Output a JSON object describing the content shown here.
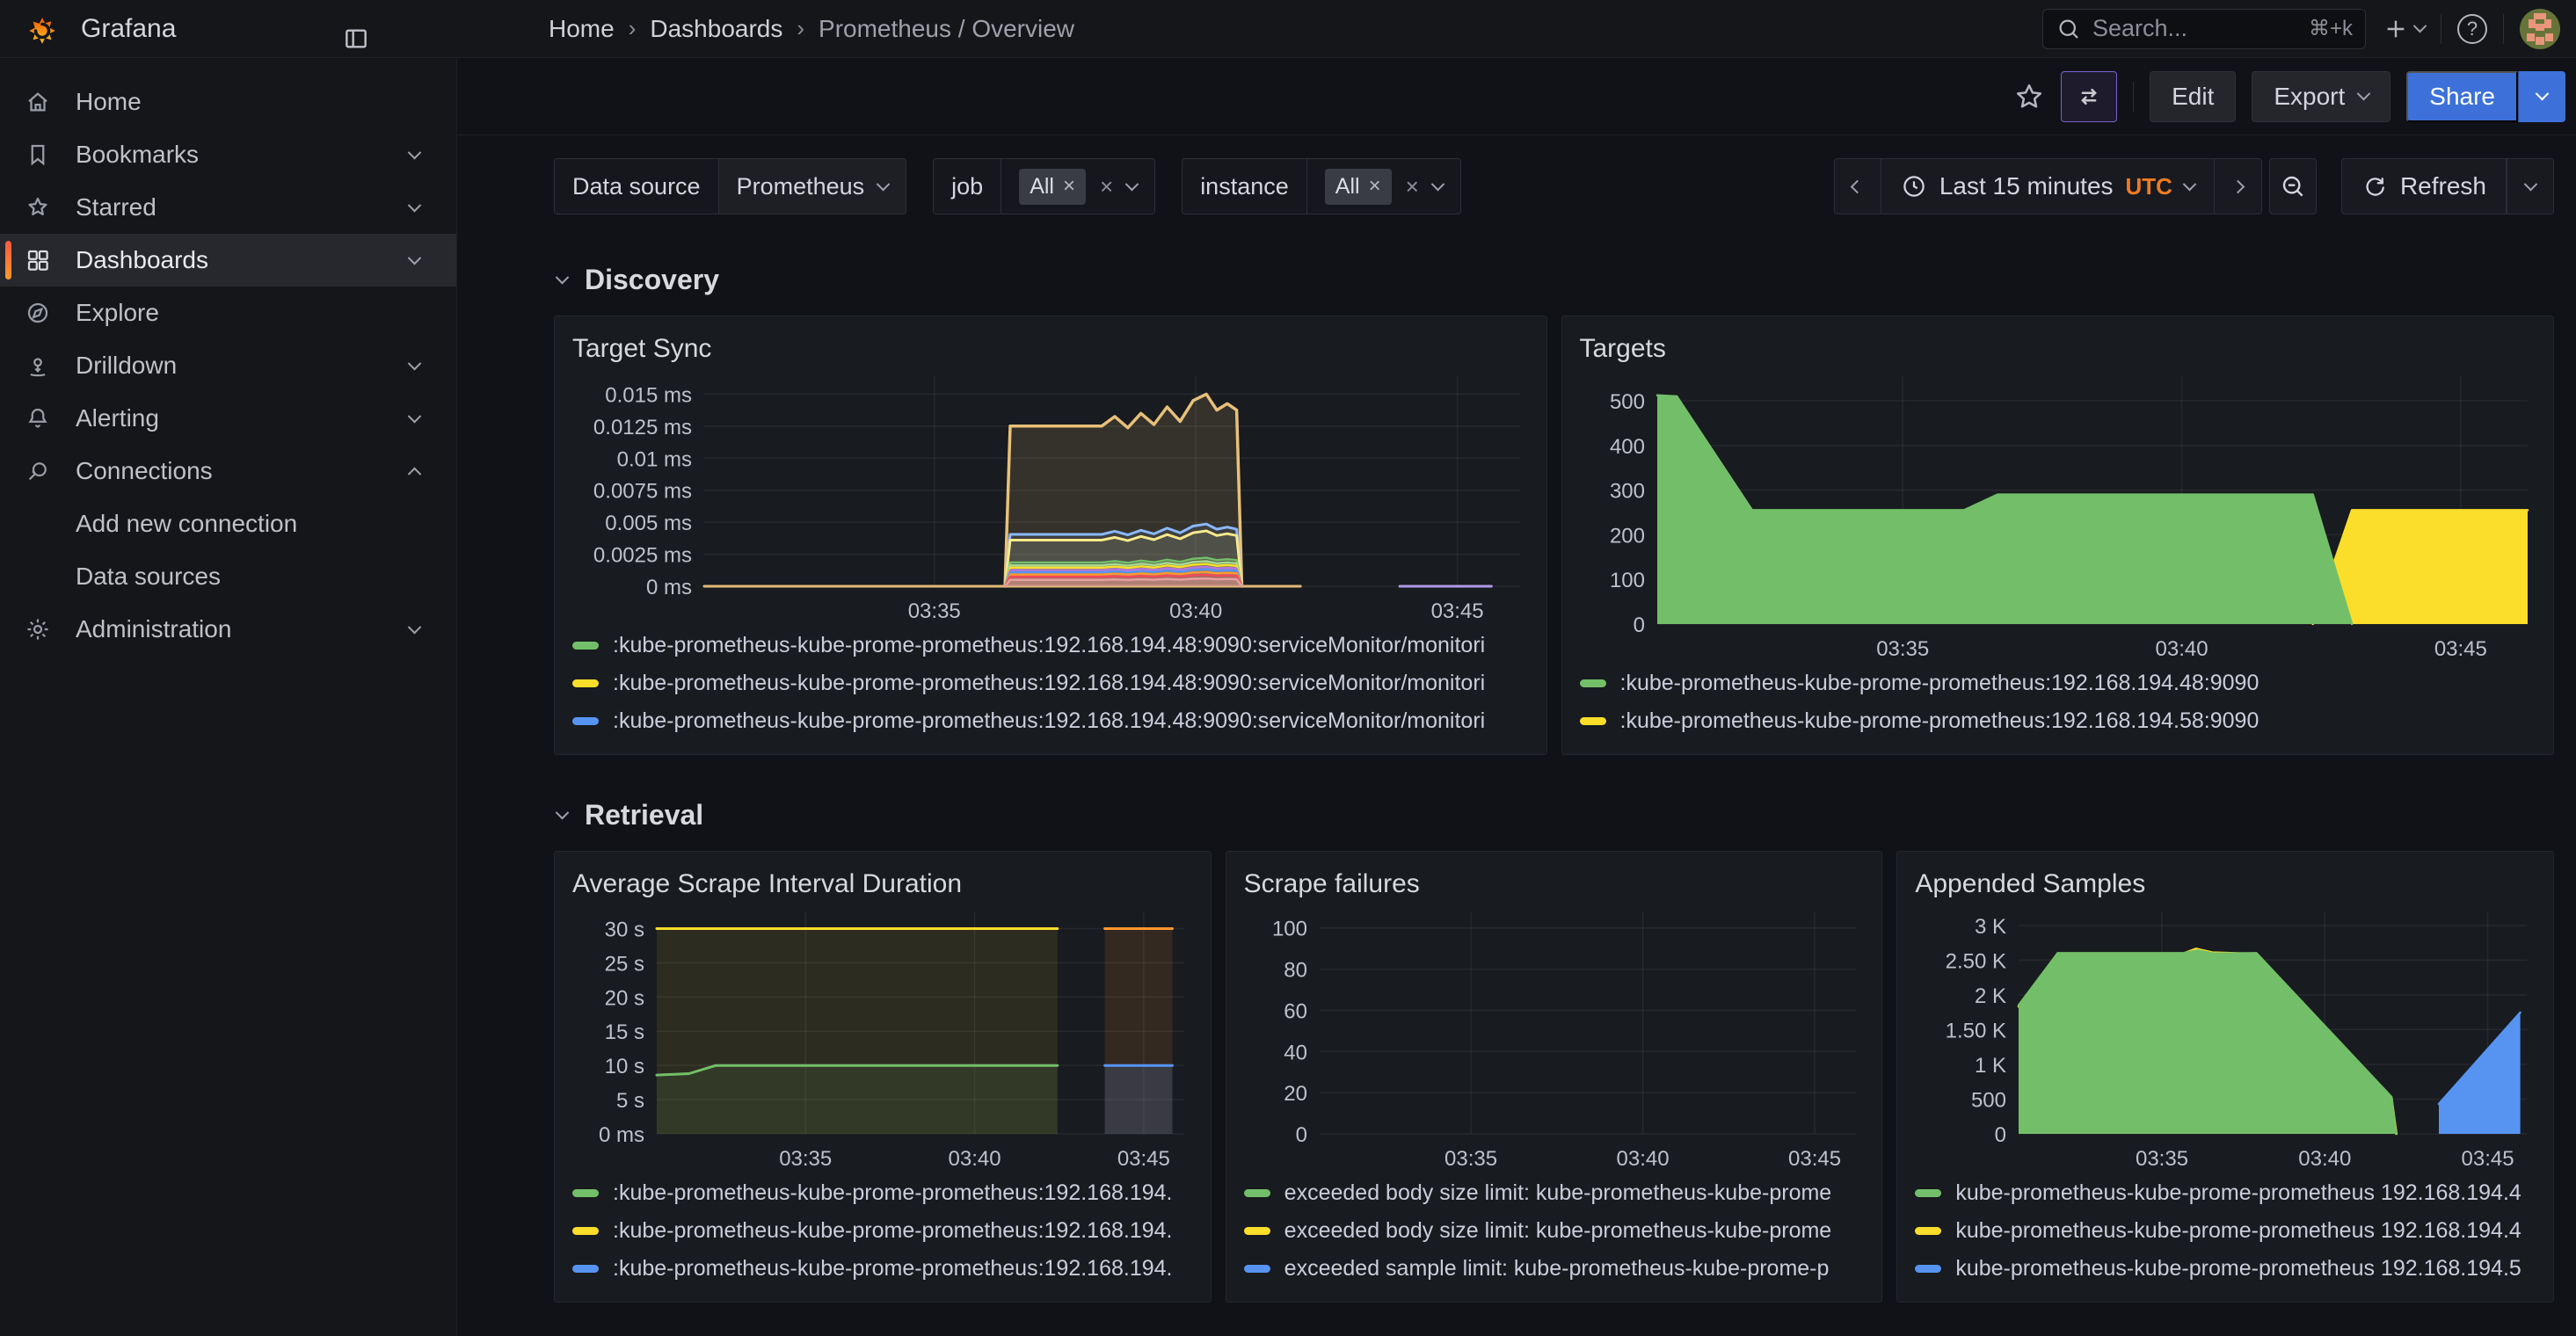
{
  "topbar": {
    "app_title": "Grafana",
    "breadcrumb": [
      "Home",
      "Dashboards",
      "Prometheus / Overview"
    ],
    "search": {
      "placeholder": "Search...",
      "shortcut": "⌘+k"
    },
    "help_glyph": "?"
  },
  "actions": {
    "edit_label": "Edit",
    "export_label": "Export",
    "share_label": "Share"
  },
  "filters": {
    "datasource_label": "Data source",
    "datasource_value": "Prometheus",
    "job_label": "job",
    "job_value": "All",
    "instance_label": "instance",
    "instance_value": "All"
  },
  "time": {
    "range_label": "Last 15 minutes",
    "timezone": "UTC",
    "refresh_label": "Refresh"
  },
  "sections": {
    "discovery": "Discovery",
    "retrieval": "Retrieval"
  },
  "sidebar": {
    "items": [
      {
        "label": "Home"
      },
      {
        "label": "Bookmarks"
      },
      {
        "label": "Starred"
      },
      {
        "label": "Dashboards",
        "active": true
      },
      {
        "label": "Explore"
      },
      {
        "label": "Drilldown"
      },
      {
        "label": "Alerting"
      },
      {
        "label": "Connections",
        "expanded": true
      },
      {
        "label": "Add new connection",
        "sub": true
      },
      {
        "label": "Data sources",
        "sub": true
      },
      {
        "label": "Administration"
      }
    ]
  },
  "colors": {
    "green": "#73bf69",
    "yellow": "#fade2a",
    "blue": "#5794f2",
    "orange": "#ff9830",
    "accent_blue": "#3d71d9",
    "utc_orange": "#ee7b22"
  },
  "chart_data": [
    {
      "type": "area",
      "title": "Target Sync",
      "pad_left": 152,
      "x_domain": [
        0,
        15.6
      ],
      "x_ticks": [
        {
          "t": 4.4,
          "label": "03:35"
        },
        {
          "t": 9.4,
          "label": "03:40"
        },
        {
          "t": 14.4,
          "label": "03:45"
        }
      ],
      "y_domain": [
        0,
        0.0164
      ],
      "y_ticks": [
        {
          "v": 0,
          "label": "0 ms"
        },
        {
          "v": 0.0025,
          "label": "0.0025 ms"
        },
        {
          "v": 0.005,
          "label": "0.005 ms"
        },
        {
          "v": 0.0075,
          "label": "0.0075 ms"
        },
        {
          "v": 0.01,
          "label": "0.01 ms"
        },
        {
          "v": 0.0125,
          "label": "0.0125 ms"
        },
        {
          "v": 0.015,
          "label": "0.015 ms"
        }
      ],
      "pulse_profile": [
        [
          5.75,
          0
        ],
        [
          5.85,
          1
        ],
        [
          7.6,
          1
        ],
        [
          7.85,
          1.06
        ],
        [
          8.1,
          0.99
        ],
        [
          8.35,
          1.08
        ],
        [
          8.6,
          1.01
        ],
        [
          8.85,
          1.12
        ],
        [
          9.1,
          1.03
        ],
        [
          9.35,
          1.16
        ],
        [
          9.6,
          1.2
        ],
        [
          9.8,
          1.1
        ],
        [
          10.0,
          1.14
        ],
        [
          10.18,
          1.1
        ],
        [
          10.28,
          0
        ]
      ],
      "series": [
        {
          "name": "baseline-zero",
          "color": "#e0b878",
          "width": 3,
          "fill": 0,
          "points": [
            [
              0,
              0
            ],
            [
              11.4,
              0
            ]
          ]
        },
        {
          "name": "tail-zero",
          "color": "#b09ae6",
          "width": 3,
          "fill": 0,
          "points": [
            [
              13.3,
              0
            ],
            [
              15.05,
              0
            ]
          ]
        },
        {
          "name": "pulse-top",
          "color": "#e8c07a",
          "width": 3.5,
          "fill": 0.14,
          "base": 0.0125
        },
        {
          "name": "pulse-lightblue",
          "color": "#8ab8ff",
          "width": 3,
          "fill": 0.1,
          "base": 0.00405
        },
        {
          "name": "pulse-paleyellow",
          "color": "#f7e98c",
          "width": 3,
          "fill": 0.1,
          "base": 0.0036
        },
        {
          "name": "pulse-green",
          "color": "#73bf69",
          "width": 2.5,
          "fill": 0.12,
          "base": 0.00185
        },
        {
          "name": "pulse-lightgreen",
          "color": "#a8d895",
          "width": 2.5,
          "fill": 0.12,
          "base": 0.00163
        },
        {
          "name": "pulse-yellow",
          "color": "#fade2a",
          "width": 2.5,
          "fill": 0.12,
          "base": 0.00145
        },
        {
          "name": "pulse-purple",
          "color": "#b877d9",
          "width": 2.5,
          "fill": 0.12,
          "base": 0.00126
        },
        {
          "name": "pulse-blue",
          "color": "#5794f2",
          "width": 2.5,
          "fill": 0.12,
          "base": 0.0011
        },
        {
          "name": "pulse-orange",
          "color": "#ff9830",
          "width": 2.5,
          "fill": 0.14,
          "base": 0.00092
        },
        {
          "name": "pulse-red",
          "color": "#f2495c",
          "width": 2.5,
          "fill": 0.2,
          "base": 0.00074
        },
        {
          "name": "pulse-salmon",
          "color": "#e8a0a0",
          "width": 2.5,
          "fill": 0.3,
          "base": 0.0005
        }
      ],
      "legend": [
        {
          "color": "#73bf69",
          "label": ":kube-prometheus-kube-prome-prometheus:192.168.194.48:9090:serviceMonitor/monitori"
        },
        {
          "color": "#fade2a",
          "label": ":kube-prometheus-kube-prome-prometheus:192.168.194.48:9090:serviceMonitor/monitori"
        },
        {
          "color": "#5794f2",
          "label": ":kube-prometheus-kube-prome-prometheus:192.168.194.48:9090:serviceMonitor/monitori"
        }
      ]
    },
    {
      "type": "area",
      "title": "Targets",
      "pad_left": 90,
      "x_domain": [
        0,
        15.6
      ],
      "x_ticks": [
        {
          "t": 4.4,
          "label": "03:35"
        },
        {
          "t": 9.4,
          "label": "03:40"
        },
        {
          "t": 14.4,
          "label": "03:45"
        }
      ],
      "y_domain": [
        0,
        555
      ],
      "y_ticks": [
        {
          "v": 0,
          "label": "0"
        },
        {
          "v": 100,
          "label": "100"
        },
        {
          "v": 200,
          "label": "200"
        },
        {
          "v": 300,
          "label": "300"
        },
        {
          "v": 400,
          "label": "400"
        },
        {
          "v": 500,
          "label": "500"
        }
      ],
      "series": [
        {
          "name": "targets-58",
          "color": "#fade2a",
          "width": 2.5,
          "fill": 1,
          "points": [
            [
              11.75,
              0
            ],
            [
              12.45,
              255
            ],
            [
              15.6,
              255
            ]
          ]
        },
        {
          "name": "targets-48",
          "color": "#73bf69",
          "width": 2.5,
          "fill": 1,
          "points": [
            [
              0,
              512
            ],
            [
              0.35,
              510
            ],
            [
              1.7,
              255
            ],
            [
              5.5,
              255
            ],
            [
              6.1,
              290
            ],
            [
              11.75,
              290
            ],
            [
              12.45,
              0
            ]
          ]
        }
      ],
      "legend": [
        {
          "color": "#73bf69",
          "label": ":kube-prometheus-kube-prome-prometheus:192.168.194.48:9090"
        },
        {
          "color": "#fade2a",
          "label": ":kube-prometheus-kube-prome-prometheus:192.168.194.58:9090"
        }
      ]
    },
    {
      "type": "area",
      "title": "Average Scrape Interval Duration",
      "pad_left": 98,
      "x_domain": [
        0,
        15.6
      ],
      "x_ticks": [
        {
          "t": 4.4,
          "label": "03:35"
        },
        {
          "t": 9.4,
          "label": "03:40"
        },
        {
          "t": 14.4,
          "label": "03:45"
        }
      ],
      "y_domain": [
        0,
        32.5
      ],
      "y_ticks": [
        {
          "v": 0,
          "label": "0 ms"
        },
        {
          "v": 5,
          "label": "5 s"
        },
        {
          "v": 10,
          "label": "10 s"
        },
        {
          "v": 15,
          "label": "15 s"
        },
        {
          "v": 20,
          "label": "20 s"
        },
        {
          "v": 25,
          "label": "25 s"
        },
        {
          "v": 30,
          "label": "30 s"
        }
      ],
      "series": [
        {
          "name": "interval-30s",
          "color": "#fade2a",
          "width": 3,
          "fill": 0.09,
          "points": [
            [
              0,
              30
            ],
            [
              11.85,
              30
            ]
          ]
        },
        {
          "name": "interval-10s",
          "color": "#73bf69",
          "width": 3,
          "fill": 0.09,
          "points": [
            [
              0,
              8.6
            ],
            [
              0.95,
              8.8
            ],
            [
              1.75,
              10
            ],
            [
              11.85,
              10
            ]
          ]
        },
        {
          "name": "interval-30s-new",
          "color": "#ff9830",
          "width": 3,
          "fill": 0.12,
          "points": [
            [
              13.25,
              30
            ],
            [
              15.25,
              30
            ]
          ]
        },
        {
          "name": "interval-10s-new",
          "color": "#5794f2",
          "width": 3,
          "fill": 0.16,
          "points": [
            [
              13.25,
              10
            ],
            [
              15.25,
              10
            ]
          ]
        }
      ],
      "legend": [
        {
          "color": "#73bf69",
          "label": ":kube-prometheus-kube-prome-prometheus:192.168.194."
        },
        {
          "color": "#fade2a",
          "label": ":kube-prometheus-kube-prome-prometheus:192.168.194."
        },
        {
          "color": "#5794f2",
          "label": ":kube-prometheus-kube-prome-prometheus:192.168.194."
        }
      ]
    },
    {
      "type": "line",
      "title": "Scrape failures",
      "pad_left": 88,
      "x_domain": [
        0,
        15.6
      ],
      "x_ticks": [
        {
          "t": 4.4,
          "label": "03:35"
        },
        {
          "t": 9.4,
          "label": "03:40"
        },
        {
          "t": 14.4,
          "label": "03:45"
        }
      ],
      "y_domain": [
        0,
        108
      ],
      "y_ticks": [
        {
          "v": 0,
          "label": "0"
        },
        {
          "v": 20,
          "label": "20"
        },
        {
          "v": 40,
          "label": "40"
        },
        {
          "v": 60,
          "label": "60"
        },
        {
          "v": 80,
          "label": "80"
        },
        {
          "v": 100,
          "label": "100"
        }
      ],
      "series": [],
      "legend": [
        {
          "color": "#73bf69",
          "label": "exceeded body size limit: kube-prometheus-kube-prome"
        },
        {
          "color": "#fade2a",
          "label": "exceeded body size limit: kube-prometheus-kube-prome"
        },
        {
          "color": "#5794f2",
          "label": "exceeded sample limit: kube-prometheus-kube-prome-p"
        }
      ]
    },
    {
      "type": "area",
      "title": "Appended Samples",
      "pad_left": 120,
      "x_domain": [
        0,
        15.6
      ],
      "x_ticks": [
        {
          "t": 4.4,
          "label": "03:35"
        },
        {
          "t": 9.4,
          "label": "03:40"
        },
        {
          "t": 14.4,
          "label": "03:45"
        }
      ],
      "y_domain": [
        0,
        3200
      ],
      "y_ticks": [
        {
          "v": 0,
          "label": "0"
        },
        {
          "v": 500,
          "label": "500"
        },
        {
          "v": 1000,
          "label": "1 K"
        },
        {
          "v": 1500,
          "label": "1.50 K"
        },
        {
          "v": 2000,
          "label": "2 K"
        },
        {
          "v": 2500,
          "label": "2.50 K"
        },
        {
          "v": 3000,
          "label": "3 K"
        }
      ],
      "series": [
        {
          "name": "samples-yellow",
          "color": "#fade2a",
          "width": 2.5,
          "fill": 1,
          "points": [
            [
              0,
              1830
            ],
            [
              1.2,
              2585
            ],
            [
              5.0,
              2585
            ],
            [
              5.45,
              2665
            ],
            [
              5.95,
              2610
            ],
            [
              7.3,
              2590
            ],
            [
              11.45,
              520
            ],
            [
              11.6,
              0
            ]
          ]
        },
        {
          "name": "samples-green",
          "color": "#73bf69",
          "width": 2.5,
          "fill": 1,
          "points": [
            [
              0,
              1850
            ],
            [
              1.2,
              2600
            ],
            [
              5.05,
              2600
            ],
            [
              5.5,
              2640
            ],
            [
              6.0,
              2595
            ],
            [
              7.3,
              2600
            ],
            [
              11.45,
              530
            ],
            [
              11.58,
              0
            ]
          ]
        },
        {
          "name": "samples-blue",
          "color": "#5794f2",
          "width": 2.5,
          "fill": 1,
          "points": [
            [
              12.9,
              430
            ],
            [
              15.4,
              1745
            ]
          ]
        }
      ],
      "legend": [
        {
          "color": "#73bf69",
          "label": "kube-prometheus-kube-prome-prometheus 192.168.194.4"
        },
        {
          "color": "#fade2a",
          "label": "kube-prometheus-kube-prome-prometheus 192.168.194.4"
        },
        {
          "color": "#5794f2",
          "label": "kube-prometheus-kube-prome-prometheus 192.168.194.5"
        }
      ]
    }
  ]
}
